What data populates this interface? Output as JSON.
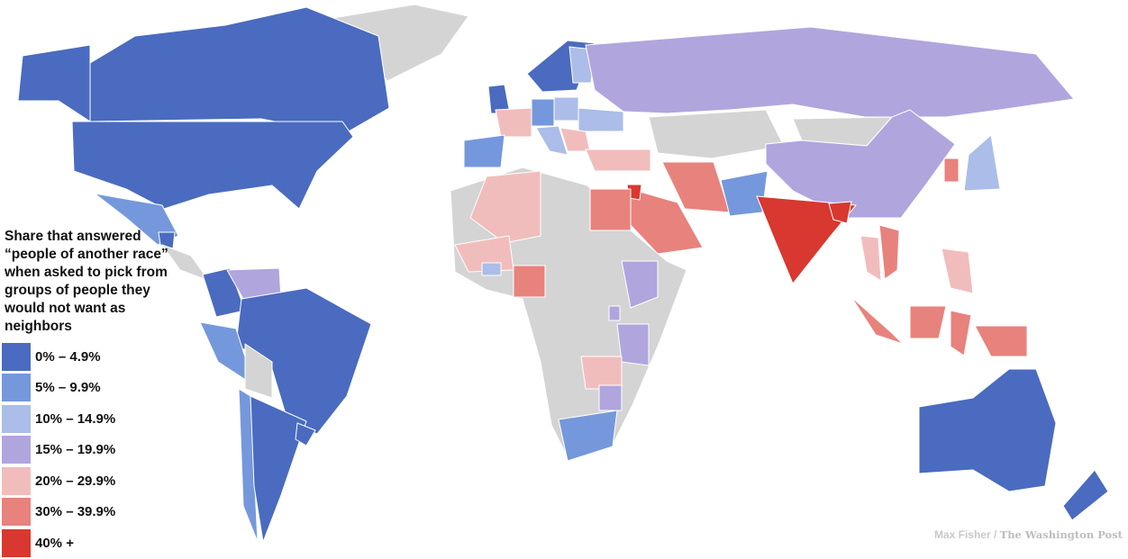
{
  "legend": {
    "title": "Share that answered “people of another race” when asked to pick from groups of people they would not want as neighbors",
    "bins": [
      {
        "label": "0% – 4.9%",
        "color": "#4a6bbf"
      },
      {
        "label": "5% – 9.9%",
        "color": "#7598dc"
      },
      {
        "label": "10% – 14.9%",
        "color": "#abbde8"
      },
      {
        "label": "15% – 19.9%",
        "color": "#b1a5de"
      },
      {
        "label": "20% – 29.9%",
        "color": "#f1bdbc"
      },
      {
        "label": "30% – 39.9%",
        "color": "#e8827c"
      },
      {
        "label": "40% +",
        "color": "#d8382f"
      }
    ],
    "no_data_color": "#d4d4d4"
  },
  "region_bins": {
    "alaska": 0,
    "canada": 0,
    "usa": 0,
    "greenland": -1,
    "mexico": 1,
    "central-america": -1,
    "guatemala": 0,
    "colombia": 0,
    "venezuela": 3,
    "brazil": 0,
    "peru": 1,
    "bolivia": -1,
    "chile": 1,
    "argentina": 0,
    "uruguay": 0,
    "uk": 0,
    "spain": 1,
    "france": 4,
    "germany": 1,
    "scandinavia": 0,
    "finland": 2,
    "poland": 2,
    "ukraine": 2,
    "italy": 2,
    "balkans": 4,
    "russia": 3,
    "kazakhstan": -1,
    "mongolia": -1,
    "china": 3,
    "india": 6,
    "pakistan": 1,
    "iran": 5,
    "saudi-arabia": 5,
    "turkey": 4,
    "egypt": 5,
    "jordan": 6,
    "africa": -1,
    "algeria": 4,
    "mali": 4,
    "burkina-faso": 2,
    "nigeria": 5,
    "ethiopia": 3,
    "rwanda": 3,
    "tanzania": 3,
    "zambia": 4,
    "zimbabwe": 3,
    "south-africa": 1,
    "thailand": 4,
    "vietnam": 5,
    "sumatra": 5,
    "borneo": 5,
    "sulawesi": 5,
    "new-guinea": 5,
    "philippines": 4,
    "japan": 2,
    "south-korea": 5,
    "australia": 0,
    "new-zealand": 0,
    "bangladesh": 6
  },
  "credit": {
    "author": "Max Fisher /",
    "publisher": "The Washington Post"
  }
}
